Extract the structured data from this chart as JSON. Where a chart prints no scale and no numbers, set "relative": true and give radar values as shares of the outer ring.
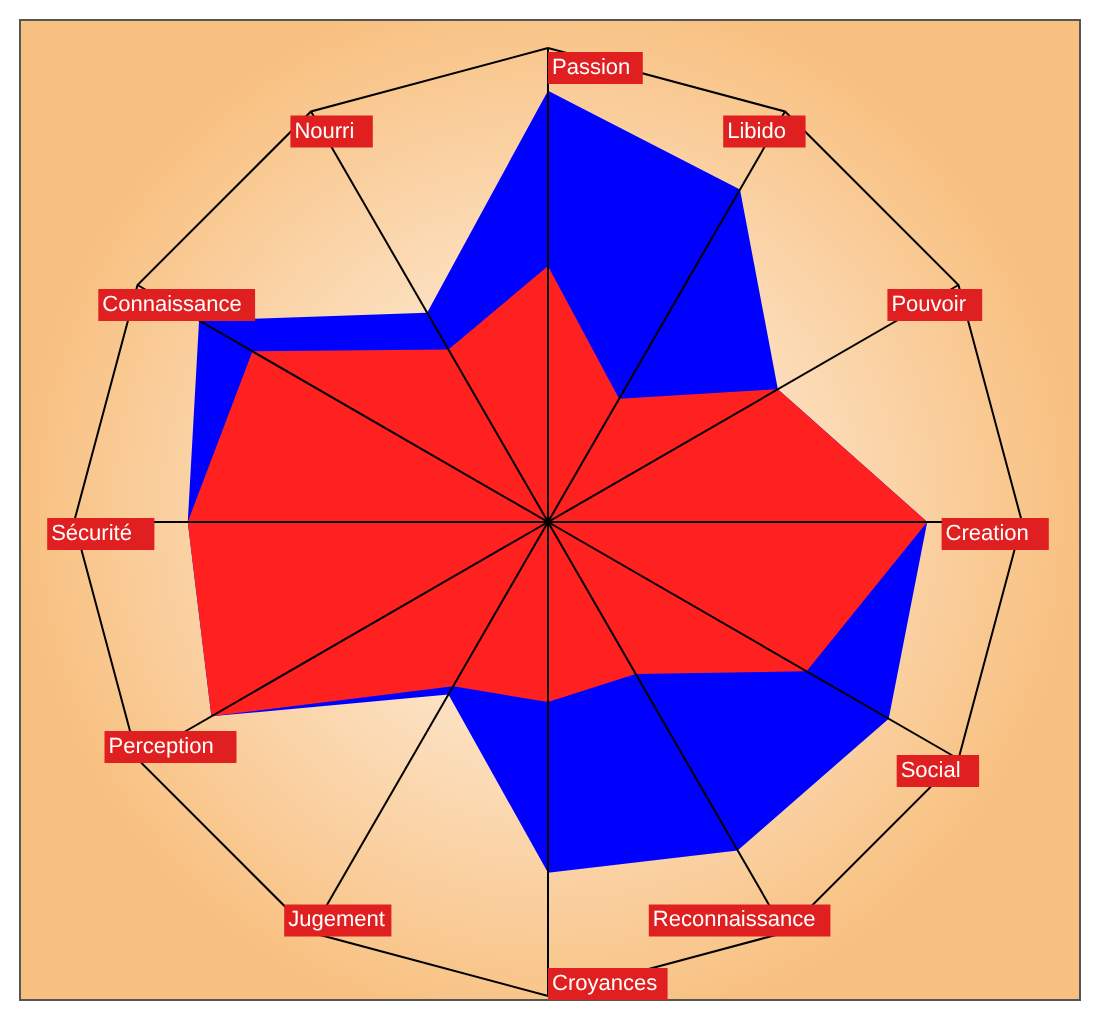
{
  "chart_data": {
    "type": "radar",
    "relative": true,
    "grid": true,
    "categories": [
      "Passion",
      "Libido",
      "Pouvoir",
      "Creation",
      "Social",
      "Reconnaissance",
      "Croyances",
      "Jugement",
      "Perception",
      "Sécurité",
      "Connaissance",
      "Nourri"
    ],
    "series": [
      {
        "color": "#0000ff",
        "values": [
          0.91,
          0.81,
          0.56,
          0.8,
          0.83,
          0.8,
          0.74,
          0.42,
          0.82,
          0.76,
          0.85,
          0.51
        ]
      },
      {
        "color": "#ff2020",
        "values": [
          0.54,
          0.3,
          0.56,
          0.8,
          0.63,
          0.37,
          0.38,
          0.4,
          0.82,
          0.76,
          0.72,
          0.42
        ]
      }
    ]
  }
}
